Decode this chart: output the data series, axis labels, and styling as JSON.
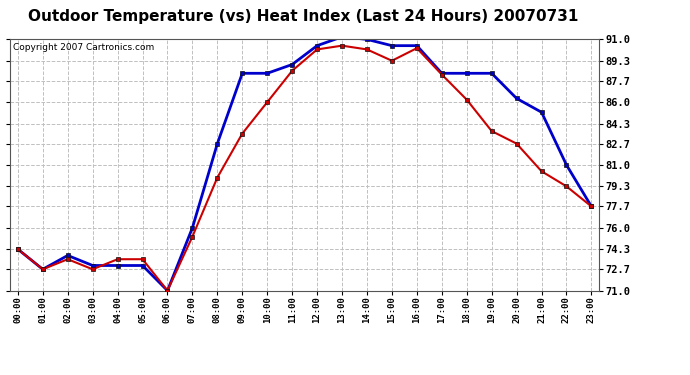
{
  "title": "Outdoor Temperature (vs) Heat Index (Last 24 Hours) 20070731",
  "copyright": "Copyright 2007 Cartronics.com",
  "hours": [
    "00:00",
    "01:00",
    "02:00",
    "03:00",
    "04:00",
    "05:00",
    "06:00",
    "07:00",
    "08:00",
    "09:00",
    "10:00",
    "11:00",
    "12:00",
    "13:00",
    "14:00",
    "15:00",
    "16:00",
    "17:00",
    "18:00",
    "19:00",
    "20:00",
    "21:00",
    "22:00",
    "23:00"
  ],
  "temp": [
    74.3,
    72.7,
    73.5,
    72.7,
    73.5,
    73.5,
    71.0,
    75.3,
    80.0,
    83.5,
    86.0,
    88.5,
    90.2,
    90.5,
    90.2,
    89.3,
    90.3,
    88.2,
    86.2,
    83.7,
    82.7,
    80.5,
    79.3,
    77.7
  ],
  "heat_index": [
    74.3,
    72.7,
    73.8,
    73.0,
    73.0,
    73.0,
    71.0,
    76.0,
    82.7,
    88.3,
    88.3,
    89.0,
    90.5,
    91.2,
    91.0,
    90.5,
    90.5,
    88.3,
    88.3,
    88.3,
    86.3,
    85.2,
    81.0,
    77.7
  ],
  "ylim_min": 71.0,
  "ylim_max": 91.0,
  "yticks": [
    71.0,
    72.7,
    74.3,
    76.0,
    77.7,
    79.3,
    81.0,
    82.7,
    84.3,
    86.0,
    87.7,
    89.3,
    91.0
  ],
  "temp_color": "#cc0000",
  "heat_index_color": "#0000cc",
  "bg_color": "#ffffff",
  "plot_bg_color": "#ffffff",
  "grid_color": "#c0c0c0",
  "title_fontsize": 11,
  "copyright_fontsize": 6.5
}
